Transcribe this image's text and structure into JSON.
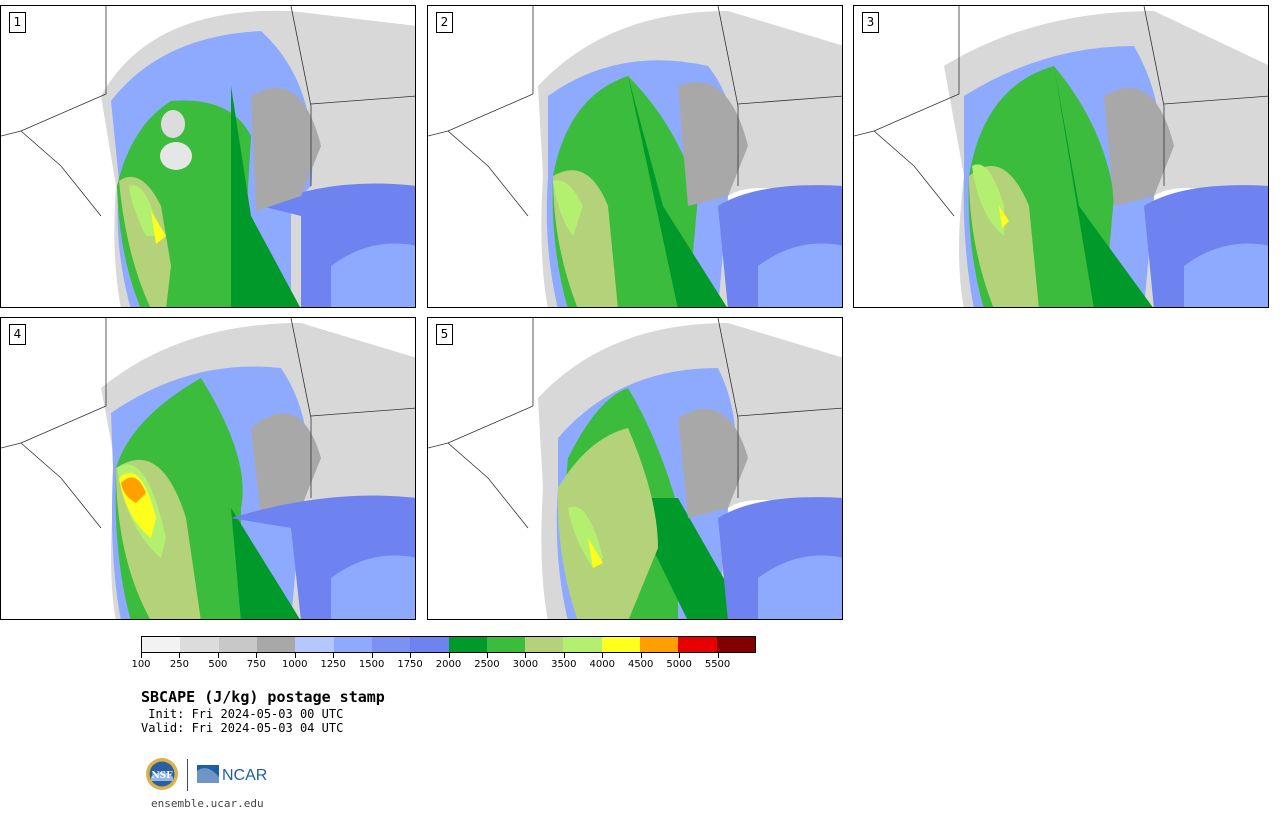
{
  "panels": [
    {
      "label": "1"
    },
    {
      "label": "2"
    },
    {
      "label": "3"
    },
    {
      "label": "4"
    },
    {
      "label": "5"
    }
  ],
  "colorbar": {
    "colors": [
      "#f2f2f2",
      "#dcdcdc",
      "#c8c8c8",
      "#a8a8a8",
      "#b4c8ff",
      "#8eaaff",
      "#7a92f2",
      "#6e82f0",
      "#009a2a",
      "#3cbc3c",
      "#b4d27a",
      "#b4f070",
      "#ffff1e",
      "#ffa000",
      "#e60000",
      "#820000"
    ],
    "ticks": [
      "100",
      "250",
      "500",
      "750",
      "1000",
      "1250",
      "1500",
      "1750",
      "2000",
      "2500",
      "3000",
      "3500",
      "4000",
      "4500",
      "5000",
      "5500"
    ]
  },
  "title": "SBCAPE (J/kg) postage stamp",
  "init": " Init: Fri 2024-05-03 00 UTC",
  "valid": "Valid: Fri 2024-05-03 04 UTC",
  "logos": {
    "nsf": "NSF",
    "ncar": "NCAR"
  },
  "footer_url": "ensemble.ucar.edu"
}
